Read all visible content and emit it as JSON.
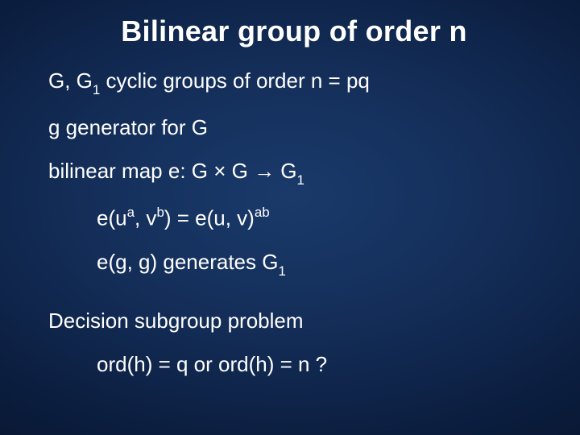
{
  "slide": {
    "title": "Bilinear group of order n",
    "background_colors": [
      "#1a3a6b",
      "#132d57",
      "#0b1d3e",
      "#050f22"
    ],
    "text_color": "#ffffff",
    "title_fontsize": 36,
    "body_fontsize": 26,
    "font_family": "Arial",
    "lines": {
      "l1_pre": "G, G",
      "l1_sub": "1",
      "l1_post": " cyclic groups of order n = pq",
      "l2": "g generator for G",
      "l3_pre": "bilinear map e: G ",
      "l3_times": "×",
      "l3_mid": " G ",
      "l3_arrow": "→",
      "l3_post": " G",
      "l3_sub": "1",
      "l4_a": "e(u",
      "l4_supa": "a",
      "l4_b": ", v",
      "l4_supb": "b",
      "l4_c": ") = e(u, v)",
      "l4_supab": "ab",
      "l5_a": "e(g, g) generates G",
      "l5_sub": "1",
      "l6": "Decision subgroup problem",
      "l7": "ord(h) = q  or  ord(h) = n ?"
    }
  }
}
